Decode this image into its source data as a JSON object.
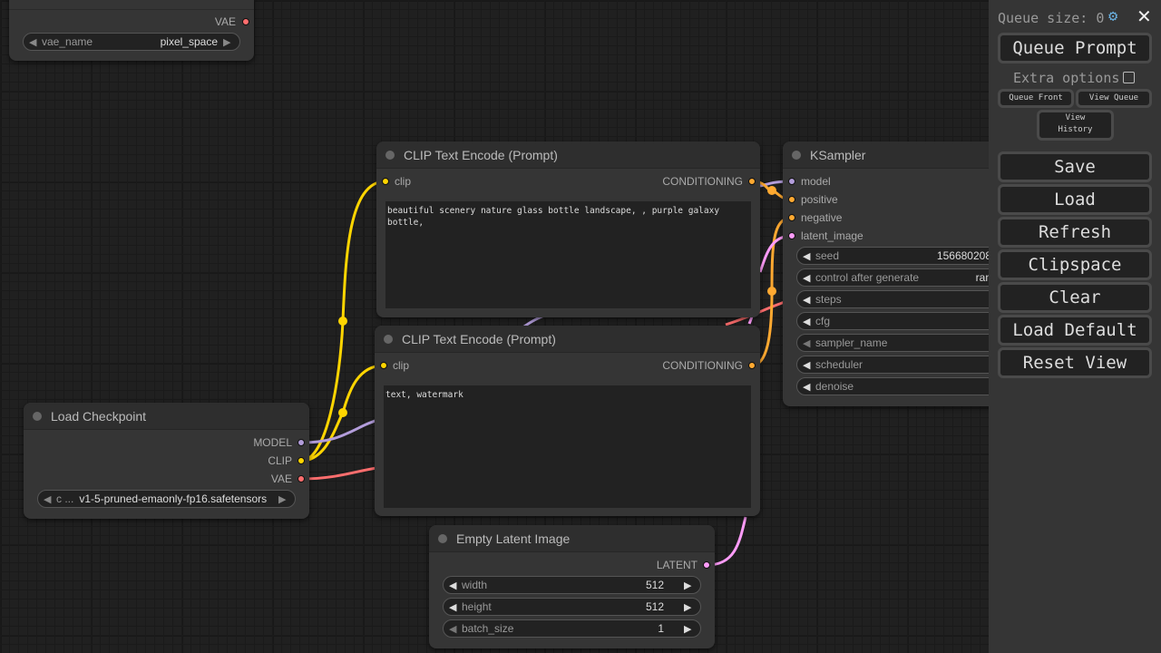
{
  "vae_node": {
    "output": "VAE",
    "widget": {
      "label": "vae_name",
      "value": "pixel_space"
    }
  },
  "clip_pos": {
    "title": "CLIP Text Encode (Prompt)",
    "input": "clip",
    "output": "CONDITIONING",
    "text": "beautiful scenery nature glass bottle landscape, , purple galaxy bottle,"
  },
  "clip_neg": {
    "title": "CLIP Text Encode (Prompt)",
    "input": "clip",
    "output": "CONDITIONING",
    "text": "text, watermark"
  },
  "ksampler": {
    "title": "KSampler",
    "inputs": [
      "model",
      "positive",
      "negative",
      "latent_image"
    ],
    "widgets": [
      {
        "label": "seed",
        "value": "156680208"
      },
      {
        "label": "control after generate",
        "value": "ran"
      },
      {
        "label": "steps",
        "value": ""
      },
      {
        "label": "cfg",
        "value": ""
      },
      {
        "label": "sampler_name",
        "value": ""
      },
      {
        "label": "scheduler",
        "value": ""
      },
      {
        "label": "denoise",
        "value": ""
      }
    ]
  },
  "checkpoint": {
    "title": "Load Checkpoint",
    "outputs": [
      "MODEL",
      "CLIP",
      "VAE"
    ],
    "widget": {
      "label": "c ...",
      "value": "v1-5-pruned-emaonly-fp16.safetensors"
    }
  },
  "latent": {
    "title": "Empty Latent Image",
    "output": "LATENT",
    "widgets": [
      {
        "label": "width",
        "value": "512"
      },
      {
        "label": "height",
        "value": "512"
      },
      {
        "label": "batch_size",
        "value": "1"
      }
    ]
  },
  "panel": {
    "queue_size": "Queue size: 0",
    "queue_prompt": "Queue Prompt",
    "extra_options": "Extra options",
    "queue_front": "Queue Front",
    "view_queue": "View Queue",
    "view_history": "View History",
    "buttons": [
      "Save",
      "Load",
      "Refresh",
      "Clipspace",
      "Clear",
      "Load Default",
      "Reset View"
    ]
  },
  "colors": {
    "clip": "#ffd500",
    "model": "#b39ddb",
    "vae": "#ff6e6e",
    "conditioning": "#ffa931",
    "latent": "#ff9cf9"
  }
}
